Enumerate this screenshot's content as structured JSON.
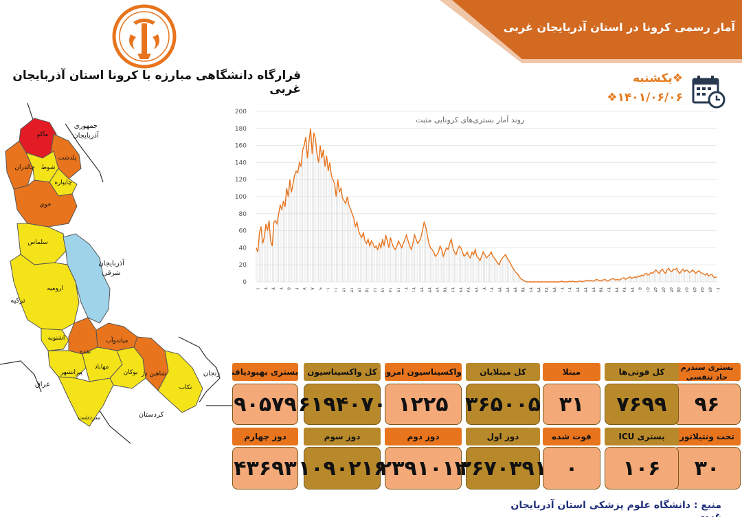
{
  "banner": {
    "title": "آمار رسمی کرونا در استان آذربایجان غربی"
  },
  "headline": "قرارگاه دانشگاهی مبارزه با کرونا استان آذربایجان غربی",
  "date": {
    "day": "❖یکشنبه",
    "date": "۱۴۰۱/۰۶/۰۶❖"
  },
  "icons": {
    "logo": "university-emblem-icon",
    "calendar": "calendar-clock-icon"
  },
  "colors": {
    "orange": "#e8741d",
    "banner": "#d36a22",
    "peach": "#f4a978",
    "olive": "#b8892a",
    "yellow": "#f5e31a",
    "red": "#e31b24",
    "blue": "#9ed3ea"
  },
  "map": {
    "labels": {
      "makoo": "ماکو",
      "jomhoori": "جمهوری",
      "azerbaijan": "آذربایجان",
      "poldasht": "پلدشت",
      "showt": "شوط",
      "chaldoran": "چالدران",
      "chaypareh": "چایپاره",
      "khoy": "خوی",
      "salmas": "سلماس",
      "az_sharghi_1": "آذربایجان",
      "az_sharghi_2": "شرقی",
      "turkey": "ترکیه",
      "urmia": "ارومیه",
      "oshnavieh": "اشنویه",
      "miandoab": "میاندوآب",
      "naqadeh": "نقده",
      "piranshahr": "پیرانشهر",
      "mahabad": "مهاباد",
      "bukan": "بوکان",
      "shahindezh": "شاهین دژ",
      "takab": "تکاب",
      "zanjan": "زنجان",
      "iraq": "عراق",
      "sardasht": "سردشت",
      "kurdistan": "کردستان"
    }
  },
  "chart_data": {
    "type": "area",
    "title": "روند آمار بستری‌های کرونایی مثبت",
    "ylim": [
      0,
      200
    ],
    "yticks": [
      "0",
      "20",
      "40",
      "60",
      "80",
      "100",
      "120",
      "140",
      "160",
      "180",
      "200"
    ],
    "values": [
      40,
      35,
      58,
      65,
      45,
      52,
      68,
      60,
      72,
      48,
      42,
      70,
      72,
      68,
      80,
      90,
      85,
      95,
      88,
      110,
      100,
      120,
      105,
      115,
      125,
      130,
      128,
      140,
      135,
      155,
      160,
      170,
      145,
      165,
      180,
      150,
      175,
      168,
      150,
      140,
      160,
      145,
      155,
      135,
      148,
      130,
      140,
      125,
      120,
      115,
      100,
      120,
      105,
      110,
      98,
      95,
      92,
      100,
      90,
      85,
      80,
      75,
      65,
      70,
      60,
      55,
      52,
      58,
      48,
      45,
      50,
      42,
      48,
      45,
      40,
      42,
      38,
      45,
      40,
      50,
      42,
      55,
      48,
      40,
      52,
      45,
      40,
      38,
      42,
      48,
      44,
      40,
      45,
      50,
      55,
      48,
      42,
      38,
      45,
      55,
      50,
      45,
      48,
      52,
      60,
      70,
      65,
      55,
      45,
      40,
      38,
      35,
      30,
      32,
      35,
      42,
      38,
      30,
      35,
      40,
      38,
      45,
      50,
      40,
      35,
      32,
      38,
      42,
      40,
      35,
      30,
      32,
      35,
      30,
      28,
      35,
      32,
      38,
      30,
      28,
      25,
      30,
      35,
      32,
      28,
      30,
      32,
      35,
      30,
      28,
      25,
      22,
      20,
      25,
      28,
      30,
      32,
      28,
      25,
      22,
      18,
      15,
      12,
      10,
      8,
      5,
      3,
      2,
      1,
      0,
      0,
      0,
      0,
      0,
      0,
      0,
      0,
      0,
      0,
      0,
      0,
      0,
      0,
      0,
      0,
      0,
      0,
      0,
      0,
      0,
      0,
      1,
      0,
      0,
      0,
      0,
      1,
      0,
      1,
      0,
      0,
      0,
      1,
      1,
      0,
      1,
      1,
      2,
      1,
      2,
      1,
      1,
      2,
      3,
      2,
      1,
      2,
      2,
      3,
      2,
      1,
      2,
      3,
      4,
      3,
      2,
      3,
      2,
      3,
      4,
      5,
      3,
      4,
      5,
      6,
      4,
      5,
      6,
      5,
      7,
      6,
      8,
      7,
      9,
      10,
      8,
      9,
      11,
      10,
      12,
      14,
      12,
      10,
      13,
      15,
      12,
      10,
      14,
      16,
      13,
      12,
      15,
      14,
      16,
      12,
      10,
      13,
      15,
      12,
      14,
      13,
      11,
      12,
      14,
      12,
      10,
      12,
      13,
      11,
      10,
      9,
      8,
      10,
      7,
      8,
      9,
      6,
      5,
      6
    ],
    "xlabels": [
      "۱",
      "۲",
      "۳",
      "۴",
      "۵",
      "۶",
      "۷",
      "۸",
      "۹",
      "۱۰",
      "۱۱",
      "۱۲",
      "۱۳",
      "۱۴",
      "۱۵",
      "۱۶",
      "۱۷",
      "۱۸",
      "۱۹",
      "۲۰",
      "۲۱",
      "۲۲",
      "۲۳",
      "۲۴",
      "۲۵",
      "۲۶",
      "۲۷",
      "۲۸",
      "۲۹",
      "۳۰",
      "۳۱",
      "۳۲",
      "۳۳",
      "۳۴",
      "۳۵",
      "۳۶",
      "۳۷",
      "۳۸",
      "۳۹",
      "۴۰",
      "۴۱",
      "۴۲",
      "۴۳",
      "۴۴",
      "۴۵",
      "۴۶",
      "۴۷",
      "۴۸",
      "۴۹",
      "۵۰",
      "۵۱",
      "۵۲",
      "۵۳",
      "۵۴",
      "۵۵",
      "۵۶",
      "۵۷",
      "۵۸",
      "۵۹",
      "۶۰"
    ]
  },
  "stats_row1": [
    {
      "label": "بستری سندرم حاد تنفسی",
      "value": "۹۶",
      "head": "orange",
      "body": "peach"
    },
    {
      "label": "کل فوتی‌ها",
      "value": "۷۶۹۹",
      "head": "olive",
      "body": "olive"
    },
    {
      "label": "مبتلا",
      "value": "۳۱",
      "head": "orange",
      "body": "peach"
    },
    {
      "label": "کل مبتلایان",
      "value": "۳۶۵۰۰۵",
      "head": "olive",
      "body": "olive"
    },
    {
      "label": "واکسیناسیون امروز",
      "value": "۱۲۲۵",
      "head": "orange",
      "body": "peach"
    },
    {
      "label": "کل واکسیناسیون",
      "value": "۶۱۹۴۰۷۰",
      "head": "olive",
      "body": "olive"
    },
    {
      "label": "بستری بهبودیافته",
      "value": "۹۰۵۷۹",
      "head": "orange",
      "body": "peach"
    }
  ],
  "stats_row2": [
    {
      "label": "تحت ونتیلاتور",
      "value": "۳۰",
      "head": "orange",
      "body": "peach"
    },
    {
      "label": "بستری  ICU",
      "value": "۱۰۶",
      "head": "olive",
      "body": "peach"
    },
    {
      "label": "فوت شده",
      "value": "۰",
      "head": "orange",
      "body": "peach"
    },
    {
      "label": "دوز اول",
      "value": "۲۶۷۰۳۹۱",
      "head": "olive",
      "body": "olive"
    },
    {
      "label": "دوز دوم",
      "value": "۲۳۹۱۰۱۲",
      "head": "orange",
      "body": "peach"
    },
    {
      "label": "دوز سوم",
      "value": "۱۰۹۰۲۱۶",
      "head": "olive",
      "body": "olive"
    },
    {
      "label": "دوز چهارم",
      "value": "۴۳۶۹۳",
      "head": "orange",
      "body": "peach"
    }
  ],
  "source": "منبع : دانشگاه علوم پزشکی استان آذربایجان غربی"
}
